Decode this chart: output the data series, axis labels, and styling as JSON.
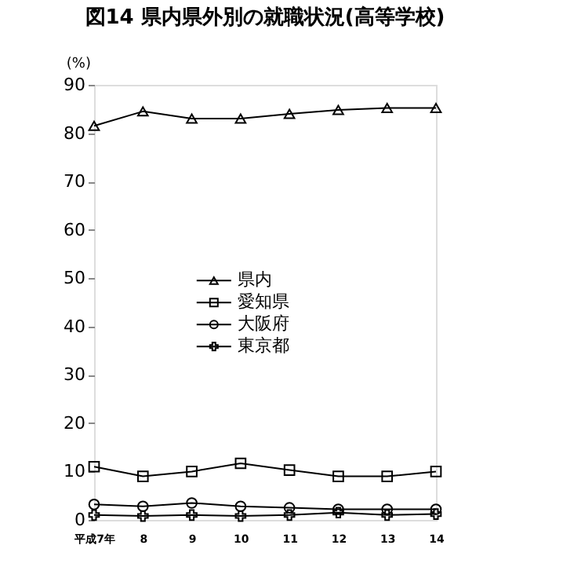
{
  "chart_data": {
    "type": "line",
    "title": "図14 県内県外別の就職状況(高等学校)",
    "ylabel": "(%)",
    "categories": [
      "平成7年",
      "8",
      "9",
      "10",
      "11",
      "12",
      "13",
      "14"
    ],
    "ylim": [
      0,
      90
    ],
    "yticks": [
      0,
      10,
      20,
      30,
      40,
      50,
      60,
      70,
      80,
      90
    ],
    "grid": false,
    "legend": "center",
    "line_style": "solid",
    "series": [
      {
        "name": "県内",
        "color": "#000000",
        "marker": "triangle",
        "values": [
          81.5,
          84.5,
          83,
          83,
          84,
          84.8,
          85.2,
          85.2
        ]
      },
      {
        "name": "愛知県",
        "color": "#000000",
        "marker": "square",
        "values": [
          11,
          9,
          10,
          11.7,
          10.3,
          9,
          9,
          10
        ]
      },
      {
        "name": "大阪府",
        "color": "#000000",
        "marker": "circle",
        "values": [
          3.2,
          2.8,
          3.5,
          2.8,
          2.5,
          2.2,
          2.2,
          2.2
        ]
      },
      {
        "name": "東京都",
        "color": "#000000",
        "marker": "cross",
        "values": [
          1,
          0.8,
          1,
          0.8,
          1,
          1.5,
          1,
          1.2
        ]
      }
    ]
  }
}
